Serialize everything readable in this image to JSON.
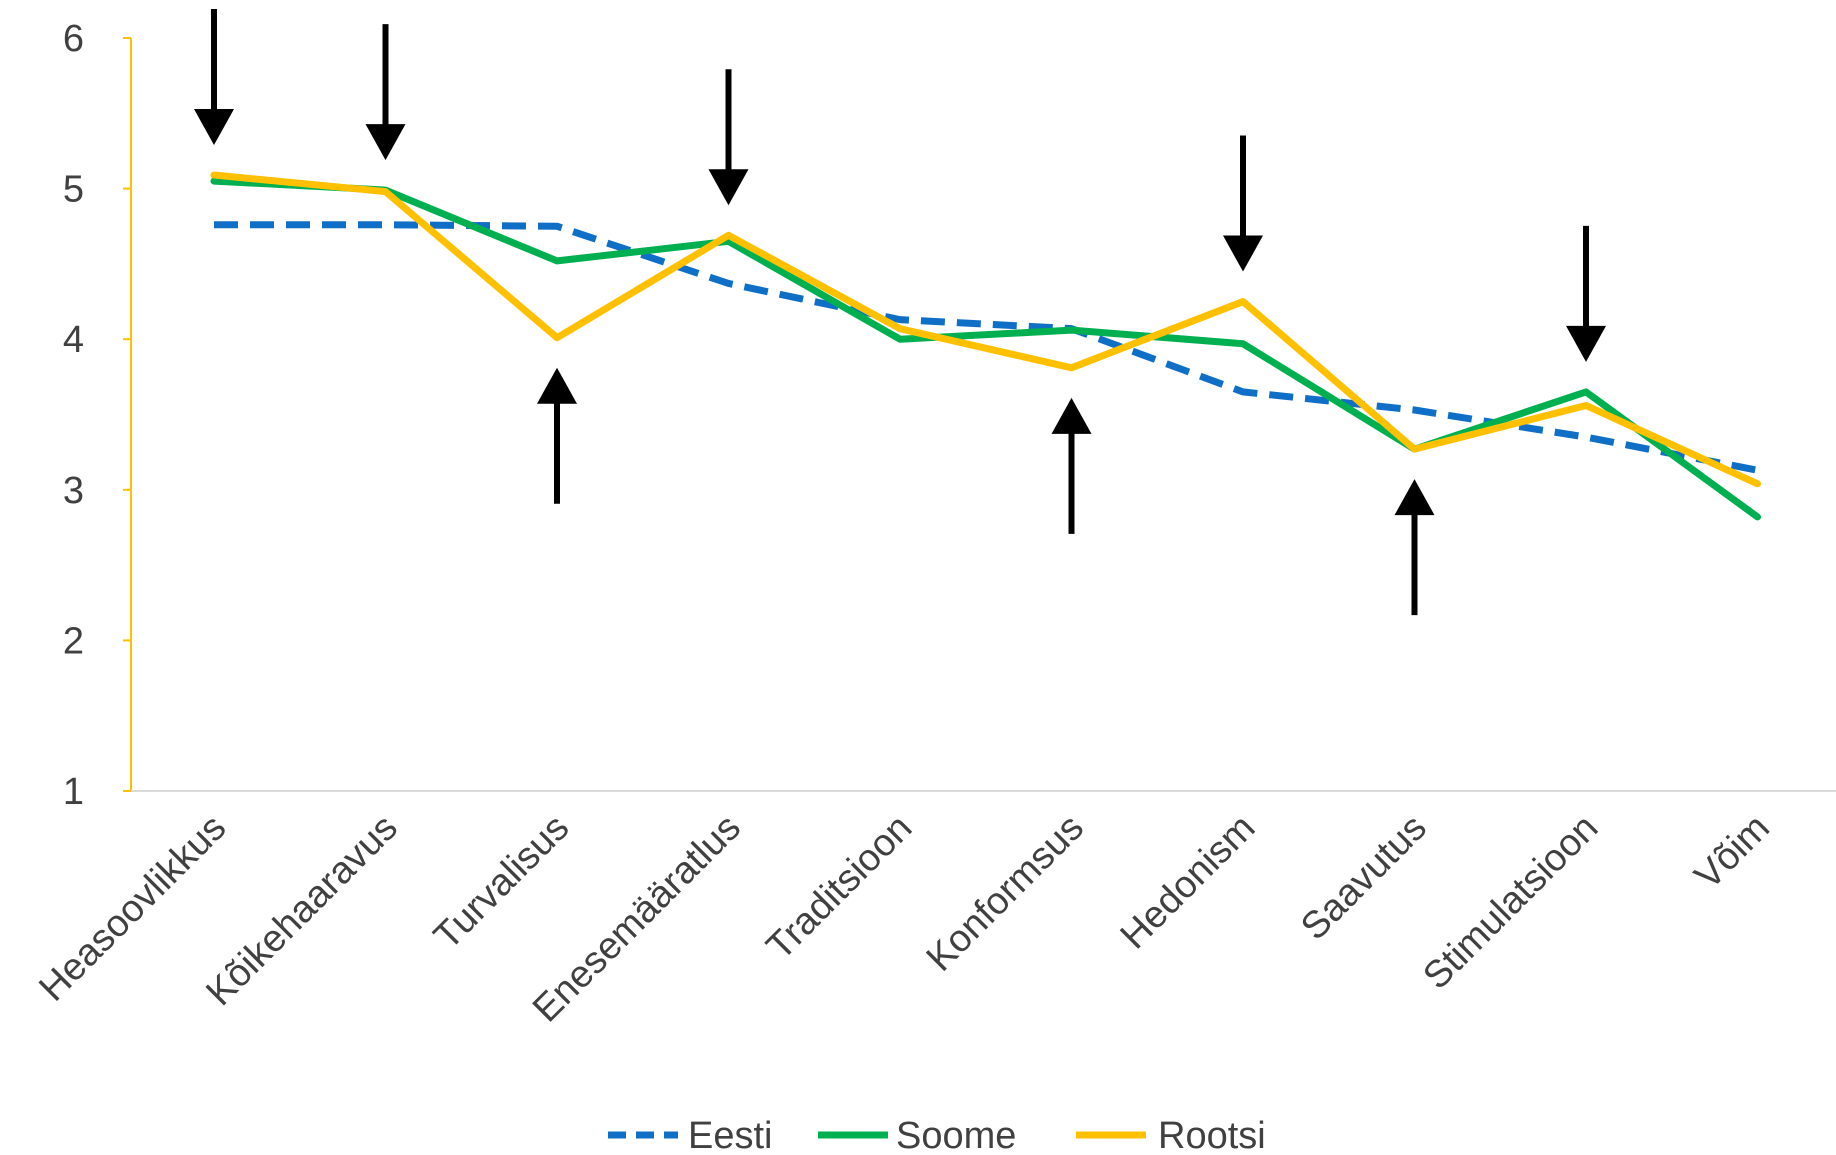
{
  "chart_data": {
    "type": "line",
    "categories": [
      "Heasoovlikkus",
      "Kõikehaaravus",
      "Turvalisus",
      "Enesemääratlus",
      "Traditsioon",
      "Konformsus",
      "Hedonism",
      "Saavutus",
      "Stimulatsioon",
      "Võim"
    ],
    "ylim": [
      1,
      6
    ],
    "yticks": [
      "1",
      "2",
      "3",
      "4",
      "5",
      "6"
    ],
    "grid": false,
    "legend": "bottom",
    "series": [
      {
        "name": "Eesti",
        "color": "#0F6FC6",
        "dash": true,
        "values": [
          4.76,
          4.76,
          4.75,
          4.37,
          4.13,
          4.07,
          3.65,
          3.53,
          3.35,
          3.13
        ]
      },
      {
        "name": "Soome",
        "color": "#00B050",
        "dash": false,
        "values": [
          5.05,
          4.99,
          4.52,
          4.65,
          4.0,
          4.06,
          3.97,
          3.27,
          3.65,
          2.82
        ]
      },
      {
        "name": "Rootsi",
        "color": "#FFC000",
        "dash": false,
        "values": [
          5.09,
          4.98,
          4.01,
          4.69,
          4.07,
          3.81,
          4.25,
          3.27,
          3.56,
          3.04
        ]
      }
    ],
    "annotations": [
      {
        "type": "arrow-down",
        "category": "Heasoovlikkus"
      },
      {
        "type": "arrow-down",
        "category": "Kõikehaaravus"
      },
      {
        "type": "arrow-up",
        "category": "Turvalisus"
      },
      {
        "type": "arrow-down",
        "category": "Enesemääratlus"
      },
      {
        "type": "arrow-up",
        "category": "Konformsus"
      },
      {
        "type": "arrow-down",
        "category": "Hedonism"
      },
      {
        "type": "arrow-up",
        "category": "Saavutus"
      },
      {
        "type": "arrow-down",
        "category": "Stimulatsioon"
      }
    ],
    "axis_color": "#FFC000"
  }
}
